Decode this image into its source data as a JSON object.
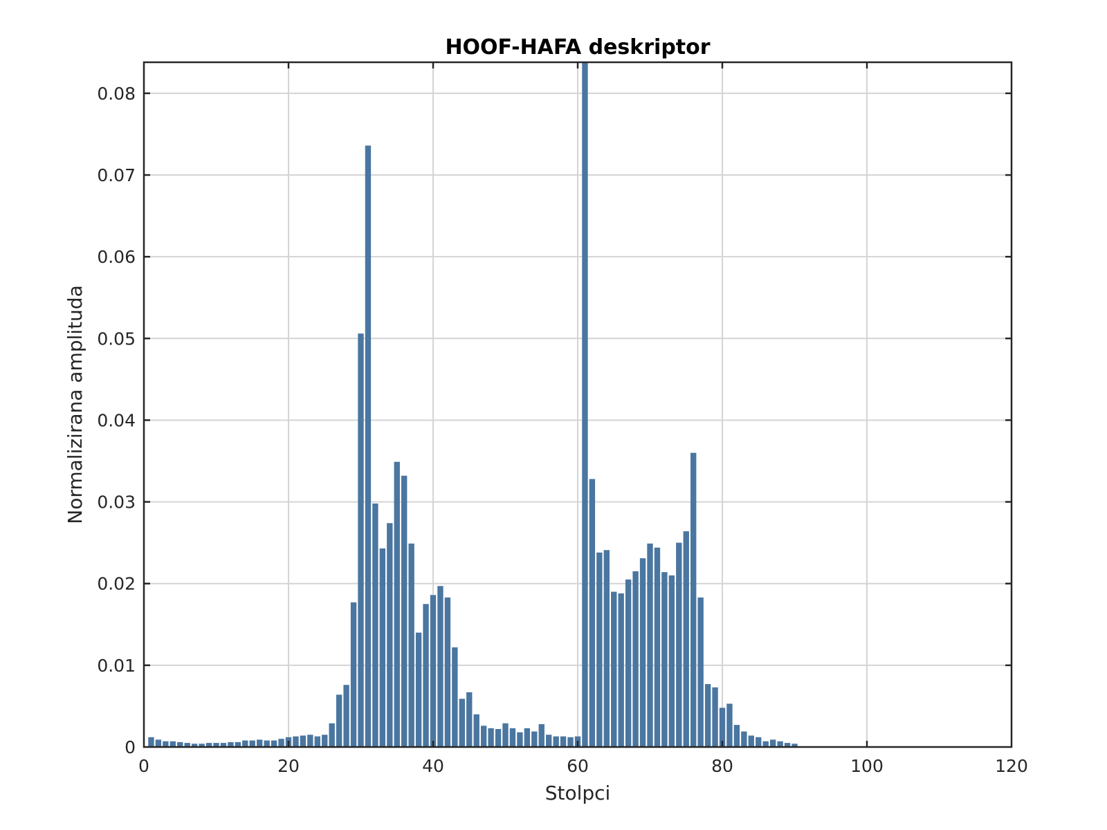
{
  "chart_data": {
    "type": "bar",
    "title": "HOOF-HAFA deskriptor",
    "xlabel": "Stolpci",
    "ylabel": "Normalizirana amplituda",
    "xlim": [
      0,
      120
    ],
    "ylim": [
      0,
      0.0838
    ],
    "xticks": [
      0,
      20,
      40,
      60,
      80,
      100,
      120
    ],
    "yticks": [
      0,
      0.01,
      0.02,
      0.03,
      0.04,
      0.05,
      0.06,
      0.07,
      0.08
    ],
    "xtick_labels": [
      "0",
      "20",
      "40",
      "60",
      "80",
      "100",
      "120"
    ],
    "ytick_labels": [
      "0",
      "0.01",
      "0.02",
      "0.03",
      "0.04",
      "0.05",
      "0.06",
      "0.07",
      "0.08"
    ],
    "grid": true,
    "bar_color": "#4a76a0",
    "x": [
      1,
      2,
      3,
      4,
      5,
      6,
      7,
      8,
      9,
      10,
      11,
      12,
      13,
      14,
      15,
      16,
      17,
      18,
      19,
      20,
      21,
      22,
      23,
      24,
      25,
      26,
      27,
      28,
      29,
      30,
      31,
      32,
      33,
      34,
      35,
      36,
      37,
      38,
      39,
      40,
      41,
      42,
      43,
      44,
      45,
      46,
      47,
      48,
      49,
      50,
      51,
      52,
      53,
      54,
      55,
      56,
      57,
      58,
      59,
      60,
      61,
      62,
      63,
      64,
      65,
      66,
      67,
      68,
      69,
      70,
      71,
      72,
      73,
      74,
      75,
      76,
      77,
      78,
      79,
      80,
      81,
      82,
      83,
      84,
      85,
      86,
      87,
      88,
      89,
      90,
      91,
      92,
      93,
      94,
      95,
      96,
      97,
      98,
      99,
      100,
      101,
      102,
      103,
      104,
      105,
      106,
      107,
      108,
      109,
      110,
      111,
      112,
      113,
      114,
      115,
      116,
      117,
      118,
      119,
      120
    ],
    "values": [
      0.0012,
      0.0009,
      0.0007,
      0.0007,
      0.0006,
      0.0005,
      0.0004,
      0.0004,
      0.0005,
      0.0005,
      0.0005,
      0.0006,
      0.0006,
      0.0008,
      0.0008,
      0.0009,
      0.0008,
      0.0008,
      0.001,
      0.0012,
      0.0013,
      0.0014,
      0.0015,
      0.0013,
      0.0015,
      0.0029,
      0.0064,
      0.0076,
      0.0177,
      0.0506,
      0.0736,
      0.0298,
      0.0243,
      0.0274,
      0.0349,
      0.0332,
      0.0249,
      0.014,
      0.0175,
      0.0186,
      0.0197,
      0.0183,
      0.0122,
      0.0059,
      0.0067,
      0.004,
      0.0026,
      0.0023,
      0.0022,
      0.0029,
      0.0023,
      0.0018,
      0.0023,
      0.0019,
      0.0028,
      0.0015,
      0.0013,
      0.0013,
      0.0012,
      0.0013,
      0.0838,
      0.0328,
      0.0238,
      0.0241,
      0.019,
      0.0188,
      0.0205,
      0.0215,
      0.0231,
      0.0249,
      0.0244,
      0.0214,
      0.021,
      0.025,
      0.0264,
      0.036,
      0.0183,
      0.0077,
      0.0073,
      0.0048,
      0.0053,
      0.0027,
      0.0019,
      0.0014,
      0.0012,
      0.0007,
      0.0009,
      0.0007,
      0.0005,
      0.0004,
      0,
      0,
      0,
      0,
      0,
      0,
      0,
      0,
      0,
      0,
      0,
      0,
      0,
      0,
      0,
      0,
      0,
      0,
      0,
      0,
      0,
      0,
      0,
      0,
      0,
      0,
      0,
      0,
      0,
      0
    ]
  }
}
